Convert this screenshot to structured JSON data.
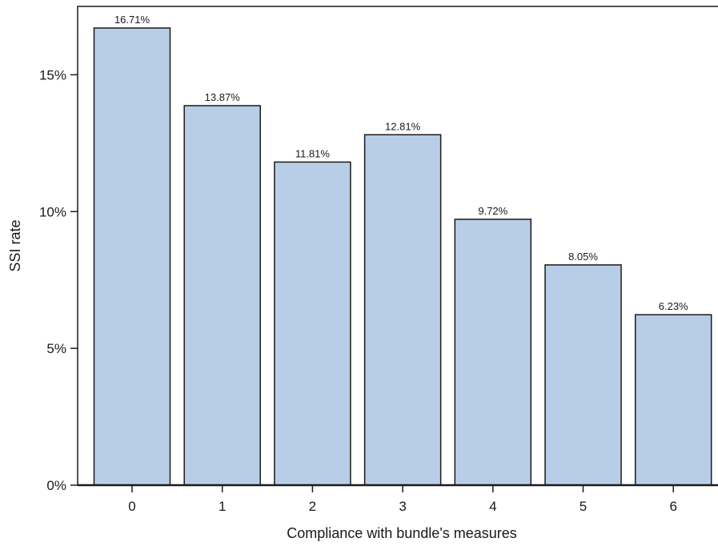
{
  "chart_data": {
    "type": "bar",
    "categories": [
      "0",
      "1",
      "2",
      "3",
      "4",
      "5",
      "6"
    ],
    "values": [
      16.71,
      13.87,
      11.81,
      12.81,
      9.72,
      8.05,
      6.23
    ],
    "data_labels": [
      "16.71%",
      "13.87%",
      "11.81%",
      "12.81%",
      "9.72%",
      "8.05%",
      "6.23%"
    ],
    "title": "",
    "xlabel": "Compliance with bundle's measures",
    "ylabel": "SSI rate",
    "ylim": [
      0,
      17.5
    ],
    "yticks": [
      0,
      5,
      10,
      15
    ],
    "ytick_labels": [
      "0%",
      "5%",
      "10%",
      "15%"
    ],
    "grid": false,
    "legend": "none",
    "bar_color": "#b8cee8",
    "bar_edge_color": "#1a1a1a"
  }
}
